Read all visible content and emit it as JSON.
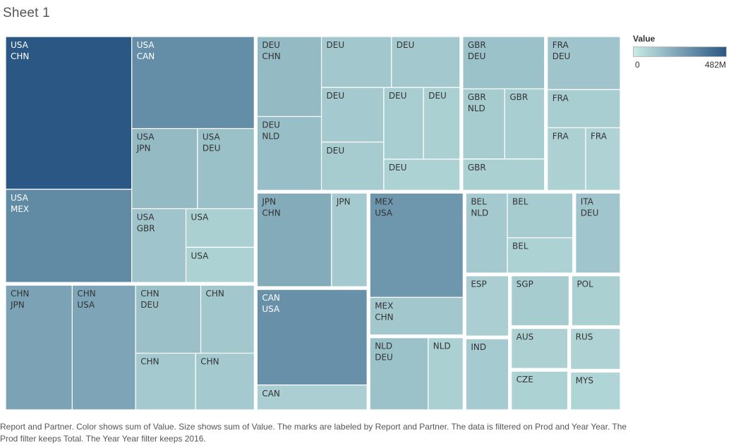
{
  "sheet_title": "Sheet 1",
  "caption": "Report and Partner.  Color shows sum of Value.  Size shows sum of Value.  The marks are labeled by Report and Partner. The data is filtered on Prod and Year Year. The Prod filter keeps Total. The Year Year filter keeps 2016.",
  "colors": {
    "low": "#c8ebe4",
    "high": "#2b5784",
    "gap": "#ffffff",
    "cell_line": "#ffffff"
  },
  "chart_data": {
    "type": "treemap",
    "legend": {
      "title": "Value",
      "min_label": "0",
      "max_label": "482M"
    },
    "groups": [
      {
        "reporter": "USA",
        "cells": [
          {
            "report": "USA",
            "partner": "CHN",
            "value": 482
          },
          {
            "report": "USA",
            "partner": "MEX",
            "value": 294
          },
          {
            "report": "USA",
            "partner": "CAN",
            "value": 282
          },
          {
            "report": "USA",
            "partner": "JPN",
            "value": 132
          },
          {
            "report": "USA",
            "partner": "DEU",
            "value": 114
          },
          {
            "report": "USA",
            "partner": "GBR",
            "value": 100
          },
          {
            "report": "USA",
            "partner": "",
            "value": 66
          },
          {
            "report": "USA",
            "partner": "",
            "value": 60
          }
        ]
      },
      {
        "reporter": "CHN",
        "cells": [
          {
            "report": "CHN",
            "partner": "JPN",
            "value": 210
          },
          {
            "report": "CHN",
            "partner": "USA",
            "value": 200
          },
          {
            "report": "CHN",
            "partner": "DEU",
            "value": 112
          },
          {
            "report": "CHN",
            "partner": "",
            "value": 92
          },
          {
            "report": "CHN",
            "partner": "",
            "value": 86
          },
          {
            "report": "CHN",
            "partner": "",
            "value": 84
          }
        ]
      },
      {
        "reporter": "DEU",
        "cells": [
          {
            "report": "DEU",
            "partner": "CHN",
            "value": 130
          },
          {
            "report": "DEU",
            "partner": "NLD",
            "value": 120
          },
          {
            "report": "DEU",
            "partner": "",
            "value": 90
          },
          {
            "report": "DEU",
            "partner": "",
            "value": 88
          },
          {
            "report": "DEU",
            "partner": "",
            "value": 86
          },
          {
            "report": "DEU",
            "partner": "",
            "value": 76
          },
          {
            "report": "DEU",
            "partner": "",
            "value": 72
          },
          {
            "report": "DEU",
            "partner": "",
            "value": 66
          },
          {
            "report": "DEU",
            "partner": "",
            "value": 60
          }
        ]
      },
      {
        "reporter": "GBR",
        "cells": [
          {
            "report": "GBR",
            "partner": "DEU",
            "value": 110
          },
          {
            "report": "GBR",
            "partner": "NLD",
            "value": 76
          },
          {
            "report": "GBR",
            "partner": "",
            "value": 72
          },
          {
            "report": "GBR",
            "partner": "",
            "value": 66
          }
        ]
      },
      {
        "reporter": "FRA",
        "cells": [
          {
            "report": "FRA",
            "partner": "DEU",
            "value": 100
          },
          {
            "report": "FRA",
            "partner": "",
            "value": 72
          },
          {
            "report": "FRA",
            "partner": "",
            "value": 62
          },
          {
            "report": "FRA",
            "partner": "",
            "value": 56
          }
        ]
      },
      {
        "reporter": "JPN",
        "cells": [
          {
            "report": "JPN",
            "partner": "CHN",
            "value": 180
          },
          {
            "report": "JPN",
            "partner": "",
            "value": 86
          }
        ]
      },
      {
        "reporter": "CAN",
        "cells": [
          {
            "report": "CAN",
            "partner": "USA",
            "value": 270
          },
          {
            "report": "CAN",
            "partner": "",
            "value": 70
          }
        ]
      },
      {
        "reporter": "MEX",
        "cells": [
          {
            "report": "MEX",
            "partner": "USA",
            "value": 250
          },
          {
            "report": "MEX",
            "partner": "CHN",
            "value": 90
          }
        ]
      },
      {
        "reporter": "NLD",
        "cells": [
          {
            "report": "NLD",
            "partner": "DEU",
            "value": 110
          },
          {
            "report": "NLD",
            "partner": "",
            "value": 66
          }
        ]
      },
      {
        "reporter": "BEL",
        "cells": [
          {
            "report": "BEL",
            "partner": "NLD",
            "value": 86
          },
          {
            "report": "BEL",
            "partner": "",
            "value": 76
          },
          {
            "report": "BEL",
            "partner": "",
            "value": 60
          }
        ]
      },
      {
        "reporter": "ITA",
        "cells": [
          {
            "report": "ITA",
            "partner": "DEU",
            "value": 96
          }
        ]
      },
      {
        "reporter": "ESP",
        "cells": [
          {
            "report": "ESP",
            "partner": "",
            "value": 70
          }
        ]
      },
      {
        "reporter": "IND",
        "cells": [
          {
            "report": "IND",
            "partner": "",
            "value": 82
          }
        ]
      },
      {
        "reporter": "SGP",
        "cells": [
          {
            "report": "SGP",
            "partner": "",
            "value": 78
          }
        ]
      },
      {
        "reporter": "POL",
        "cells": [
          {
            "report": "POL",
            "partner": "",
            "value": 66
          }
        ]
      },
      {
        "reporter": "AUS",
        "cells": [
          {
            "report": "AUS",
            "partner": "",
            "value": 62
          }
        ]
      },
      {
        "reporter": "CZE",
        "cells": [
          {
            "report": "CZE",
            "partner": "",
            "value": 60
          }
        ]
      },
      {
        "reporter": "RUS",
        "cells": [
          {
            "report": "RUS",
            "partner": "",
            "value": 56
          }
        ]
      },
      {
        "reporter": "MYS",
        "cells": [
          {
            "report": "MYS",
            "partner": "",
            "value": 52
          }
        ]
      }
    ]
  }
}
